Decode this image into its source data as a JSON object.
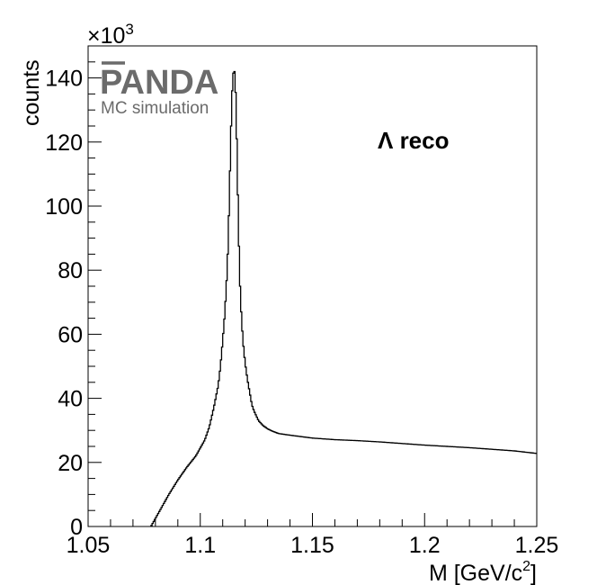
{
  "chart_data": {
    "type": "line",
    "title": "",
    "xlabel": "M [GeV/c²]",
    "xlabel_main": "M [GeV/c",
    "xlabel_sup": "2",
    "xlabel_end": "]",
    "ylabel": "counts",
    "y_multiplier": "×10³",
    "y_multiplier_base": "×10",
    "y_multiplier_exp": "3",
    "xlim": [
      1.05,
      1.25
    ],
    "ylim": [
      0,
      150
    ],
    "x_ticks": [
      "1.05",
      "1.1",
      "1.15",
      "1.2",
      "1.25"
    ],
    "x_tick_values": [
      1.05,
      1.1,
      1.15,
      1.2,
      1.25
    ],
    "y_ticks": [
      "0",
      "20",
      "40",
      "60",
      "80",
      "100",
      "120",
      "140"
    ],
    "y_tick_values": [
      0,
      20,
      40,
      60,
      80,
      100,
      120,
      140
    ],
    "grid": false,
    "histogram_step": true,
    "series": [
      {
        "x": [
          1.078,
          1.082,
          1.086,
          1.09,
          1.094,
          1.098,
          1.1,
          1.102,
          1.104,
          1.106,
          1.108,
          1.109,
          1.11,
          1.111,
          1.112,
          1.1125,
          1.113,
          1.1135,
          1.114,
          1.1145,
          1.115,
          1.1155,
          1.116,
          1.1165,
          1.117,
          1.1175,
          1.118,
          1.119,
          1.12,
          1.121,
          1.122,
          1.123,
          1.124,
          1.126,
          1.128,
          1.13,
          1.132,
          1.135,
          1.14,
          1.15,
          1.16,
          1.17,
          1.18,
          1.19,
          1.2,
          1.21,
          1.22,
          1.23,
          1.24,
          1.25
        ],
        "y": [
          0,
          5,
          10,
          14.5,
          18.5,
          22,
          24.5,
          27,
          31,
          37,
          44,
          50,
          58,
          67,
          80,
          90,
          104,
          118,
          132,
          140,
          143,
          141,
          130,
          112,
          95,
          80,
          70,
          58,
          51,
          46,
          42,
          38,
          36,
          33,
          31.5,
          30.5,
          29.8,
          29,
          28.5,
          27.6,
          27.1,
          26.8,
          26.4,
          25.9,
          25.4,
          25,
          24.6,
          24.1,
          23.6,
          22.8
        ]
      }
    ],
    "annotations": [
      "Λ reco"
    ]
  },
  "logo": {
    "text": "PANDA",
    "subtitle": "MC simulation"
  },
  "colors": {
    "line": "#000000",
    "logo": "#6b6b6b",
    "background": "#ffffff"
  }
}
